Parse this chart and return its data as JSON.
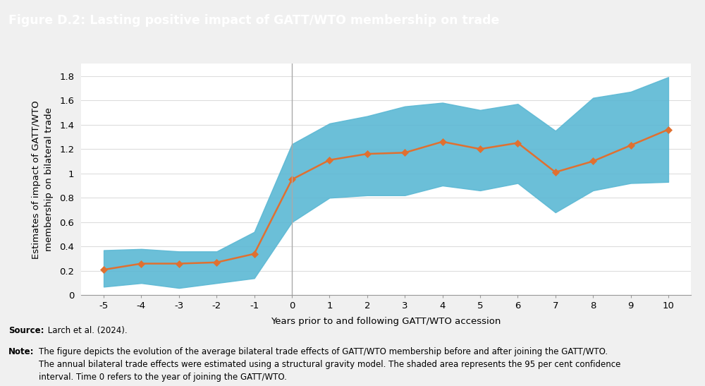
{
  "title": "Figure D.2: Lasting positive impact of GATT/WTO membership on trade",
  "title_bg_color": "#2986C2",
  "title_text_color": "#ffffff",
  "xlabel": "Years prior to and following GATT/WTO accession",
  "ylabel": "Estimates of impact of GATT/WTO\nmembership on bilateral trade",
  "background_color": "#f0f0f0",
  "plot_bg_color": "#ffffff",
  "x": [
    -5,
    -4,
    -3,
    -2,
    -1,
    0,
    1,
    2,
    3,
    4,
    5,
    6,
    7,
    8,
    9,
    10
  ],
  "y": [
    0.21,
    0.26,
    0.26,
    0.27,
    0.34,
    0.95,
    1.11,
    1.16,
    1.17,
    1.26,
    1.2,
    1.25,
    1.01,
    1.1,
    1.23,
    1.36
  ],
  "ci_upper": [
    0.37,
    0.38,
    0.36,
    0.36,
    0.52,
    1.24,
    1.41,
    1.47,
    1.55,
    1.58,
    1.52,
    1.57,
    1.35,
    1.62,
    1.67,
    1.79
  ],
  "ci_lower": [
    0.07,
    0.1,
    0.06,
    0.1,
    0.14,
    0.6,
    0.8,
    0.82,
    0.82,
    0.9,
    0.86,
    0.92,
    0.68,
    0.86,
    0.92,
    0.93
  ],
  "line_color": "#E07030",
  "fill_color": "#5BB8D4",
  "fill_alpha": 0.9,
  "marker": "D",
  "marker_size": 5,
  "line_width": 1.8,
  "ylim": [
    0,
    1.9
  ],
  "yticks": [
    0,
    0.2,
    0.4,
    0.6,
    0.8,
    1.0,
    1.2,
    1.4,
    1.6,
    1.8
  ],
  "vline_x": 0,
  "vline_color": "#aaaaaa",
  "grid_color": "#dddddd",
  "source_bold": "Source:",
  "source_rest": " Larch et al. (2024).",
  "note_bold": "Note:",
  "note_rest": "The figure depicts the evolution of the average bilateral trade effects of GATT/WTO membership before and after joining the GATT/WTO.\nThe annual bilateral trade effects were estimated using a structural gravity model. The shaded area represents the 95 per cent confidence\ninterval. Time 0 refers to the year of joining the GATT/WTO.",
  "figsize": [
    10.0,
    5.47
  ],
  "dpi": 100
}
